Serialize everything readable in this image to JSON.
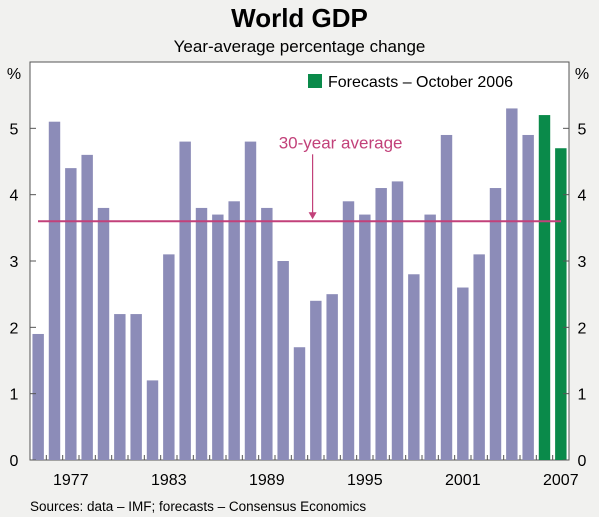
{
  "chart_data": {
    "type": "bar",
    "title": "World GDP",
    "subtitle": "Year-average percentage change",
    "ylabel_left": "%",
    "ylabel_right": "%",
    "ylim": [
      0,
      6
    ],
    "yticks": [
      0,
      1,
      2,
      3,
      4,
      5
    ],
    "x": [
      1975,
      1976,
      1977,
      1978,
      1979,
      1980,
      1981,
      1982,
      1983,
      1984,
      1985,
      1986,
      1987,
      1988,
      1989,
      1990,
      1991,
      1992,
      1993,
      1994,
      1995,
      1996,
      1997,
      1998,
      1999,
      2000,
      2001,
      2002,
      2003,
      2004,
      2005,
      2006,
      2007
    ],
    "xtick_labels": [
      "1977",
      "1983",
      "1989",
      "1995",
      "2001",
      "2007"
    ],
    "xtick_years": [
      1977,
      1983,
      1989,
      1995,
      2001,
      2007
    ],
    "series": [
      {
        "kind": "actual",
        "values": [
          1.9,
          5.1,
          4.4,
          4.6,
          3.8,
          2.2,
          2.2,
          1.2,
          3.1,
          4.8,
          3.8,
          3.7,
          3.9,
          4.8,
          3.8,
          3.0,
          1.7,
          2.4,
          2.5,
          3.9,
          3.7,
          4.1,
          4.2,
          2.8,
          3.7,
          4.9,
          2.6,
          3.1,
          4.1,
          5.3,
          4.9,
          null,
          null
        ],
        "color": "#8c8cb8"
      },
      {
        "kind": "forecast",
        "name": "Forecasts – October 2006",
        "values": [
          null,
          null,
          null,
          null,
          null,
          null,
          null,
          null,
          null,
          null,
          null,
          null,
          null,
          null,
          null,
          null,
          null,
          null,
          null,
          null,
          null,
          null,
          null,
          null,
          null,
          null,
          null,
          null,
          null,
          null,
          null,
          5.2,
          4.7
        ],
        "color": "#0a8a4a"
      }
    ],
    "average_line": {
      "label": "30-year average",
      "value": 3.6,
      "color": "#c2417a"
    },
    "legend": {
      "position": "top-right",
      "label": "Forecasts – October 2006"
    },
    "grid": false,
    "source": "Sources: data – IMF; forecasts – Consensus Economics"
  }
}
